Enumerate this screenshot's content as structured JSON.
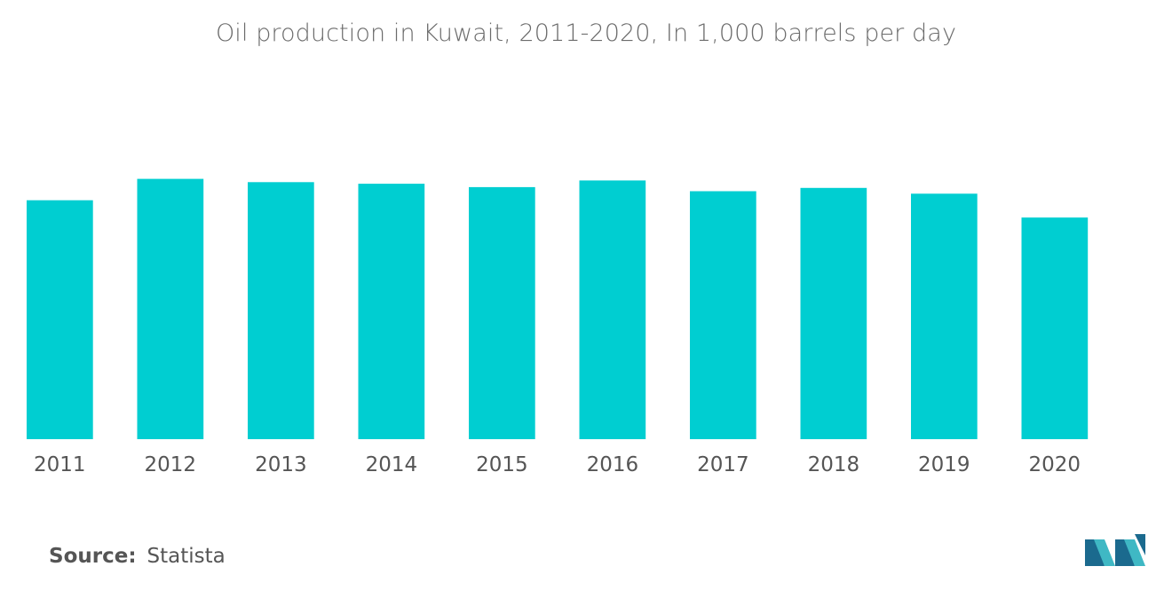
{
  "chart_data": {
    "type": "bar",
    "title": "Oil production in Kuwait, 2011-2020, In 1,000 barrels per day",
    "categories": [
      "2011",
      "2012",
      "2013",
      "2014",
      "2015",
      "2016",
      "2017",
      "2018",
      "2019",
      "2020"
    ],
    "values": [
      2900,
      3160,
      3120,
      3100,
      3060,
      3140,
      3010,
      3050,
      2980,
      2690
    ],
    "ylim": [
      0,
      3500
    ],
    "grid": false,
    "legend": "none",
    "bar_color": "#00ced1"
  },
  "footer": {
    "source_label": "Source:",
    "source_value": "Statista"
  },
  "colors": {
    "bar": "#00ced1",
    "logo_dark": "#1b6a8e",
    "logo_light": "#3fb8c4"
  },
  "logo": {
    "icon": "mordor-intelligence-logo"
  }
}
